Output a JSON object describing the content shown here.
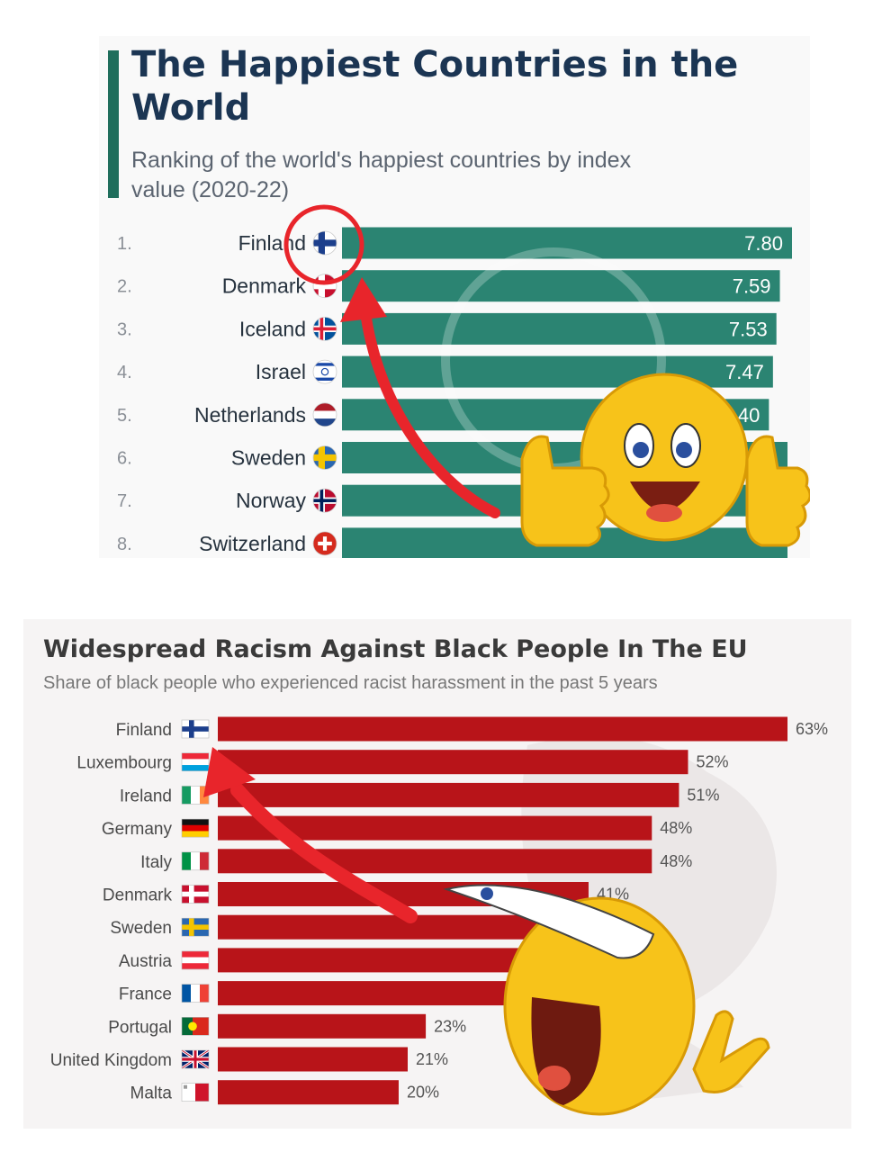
{
  "top_chart": {
    "title": "The Happiest Countries in the World",
    "subtitle": "Ranking of the world's happiest countries by index value (2020-22)",
    "accent_color": "#1f6e5c",
    "bar_color": "#2b8472"
  },
  "bottom_chart": {
    "title": "Widespread Racism Against Black People In The EU",
    "subtitle": "Share of black people who experienced racist harassment in the past 5 years",
    "bar_color": "#b81419"
  },
  "annotations": {
    "circle_color": "#e8252b",
    "arrow_color": "#e8252b",
    "top_emoji": "thumbs-up-smiley-emoji",
    "bottom_emoji": "laughing-pointing-smiley-emoji"
  },
  "chart_data": [
    {
      "type": "bar",
      "orientation": "horizontal",
      "title": "The Happiest Countries in the World",
      "subtitle": "Ranking of the world's happiest countries by index value (2020-22)",
      "ranks": [
        "1.",
        "2.",
        "3.",
        "4.",
        "5.",
        "6.",
        "7.",
        "8."
      ],
      "categories": [
        "Finland",
        "Denmark",
        "Iceland",
        "Israel",
        "Netherlands",
        "Sweden",
        "Norway",
        "Switzerland"
      ],
      "values": [
        7.8,
        7.59,
        7.53,
        7.47,
        7.4,
        null,
        null,
        null
      ],
      "value_labels": [
        "7.80",
        "7.59",
        "7.53",
        "7.47",
        "7.40",
        "",
        "",
        ""
      ],
      "flags": [
        "finland",
        "denmark",
        "iceland",
        "israel",
        "netherlands",
        "sweden",
        "norway",
        "switzerland"
      ],
      "xlim": [
        0,
        7.8
      ],
      "grid": false,
      "legend": "none"
    },
    {
      "type": "bar",
      "orientation": "horizontal",
      "title": "Widespread Racism Against Black People In The EU",
      "subtitle": "Share of black people who experienced racist harassment in the past 5 years",
      "categories": [
        "Finland",
        "Luxembourg",
        "Ireland",
        "Germany",
        "Italy",
        "Denmark",
        "Sweden",
        "Austria",
        "France",
        "Portugal",
        "United Kingdom",
        "Malta"
      ],
      "values": [
        63,
        52,
        51,
        48,
        48,
        41,
        null,
        null,
        null,
        23,
        21,
        20
      ],
      "value_labels": [
        "63%",
        "52%",
        "51%",
        "48%",
        "48%",
        "41%",
        "",
        "",
        "",
        "23%",
        "21%",
        "20%"
      ],
      "flags": [
        "finland",
        "luxembourg",
        "ireland",
        "germany",
        "italy",
        "denmark",
        "sweden",
        "austria",
        "france",
        "portugal",
        "united-kingdom",
        "malta"
      ],
      "xlim": [
        0,
        63
      ],
      "grid": false,
      "legend": "none"
    }
  ]
}
